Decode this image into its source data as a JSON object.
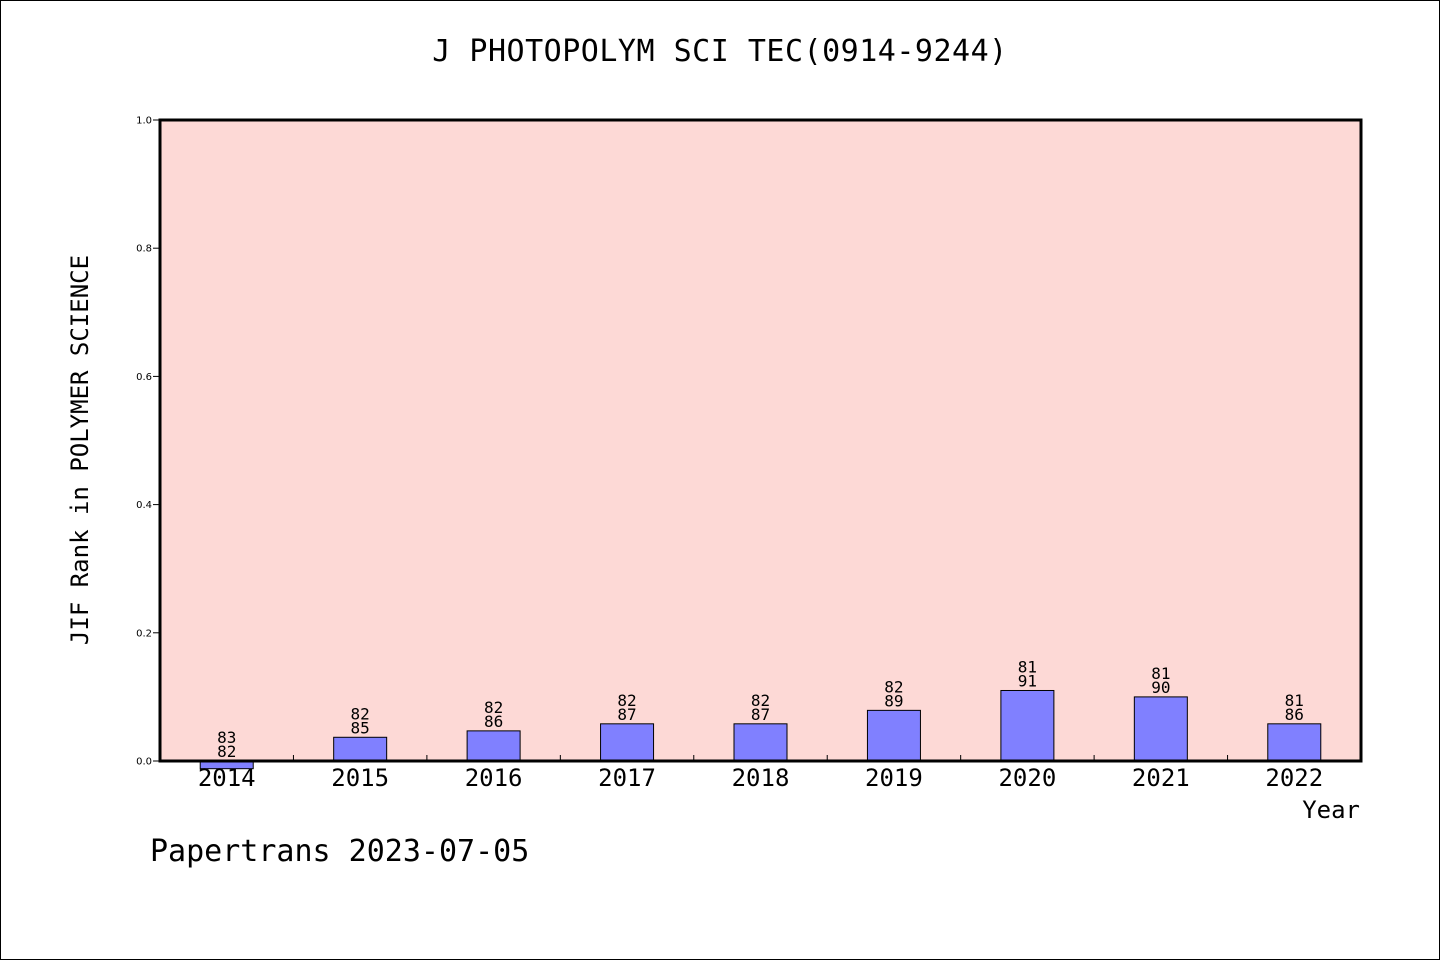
{
  "footer": "Papertrans 2023-07-05",
  "colors": {
    "plot_background": "#fdd9d6",
    "bar_fill": "#8080ff",
    "bar_stroke": "#000000",
    "axis": "#000000"
  },
  "chart_data": {
    "type": "bar",
    "title": "J PHOTOPOLYM SCI TEC(0914-9244)",
    "xlabel": "Year",
    "ylabel": "JIF Rank in POLYMER SCIENCE",
    "ylim": [
      0,
      1.0
    ],
    "yticks": [
      0.0,
      0.2,
      0.4,
      0.6,
      0.8,
      1.0
    ],
    "ytick_labels": [
      "0.0",
      "0.2",
      "0.4",
      "0.6",
      "0.8",
      "1.0"
    ],
    "grid": false,
    "categories": [
      "2014",
      "2015",
      "2016",
      "2017",
      "2018",
      "2019",
      "2020",
      "2021",
      "2022"
    ],
    "values": [
      -0.012,
      0.037,
      0.047,
      0.058,
      0.058,
      0.079,
      0.11,
      0.1,
      0.058
    ],
    "bar_labels": [
      [
        "83",
        "82"
      ],
      [
        "82",
        "85"
      ],
      [
        "82",
        "86"
      ],
      [
        "82",
        "87"
      ],
      [
        "82",
        "87"
      ],
      [
        "82",
        "89"
      ],
      [
        "81",
        "91"
      ],
      [
        "81",
        "90"
      ],
      [
        "81",
        "86"
      ]
    ]
  }
}
